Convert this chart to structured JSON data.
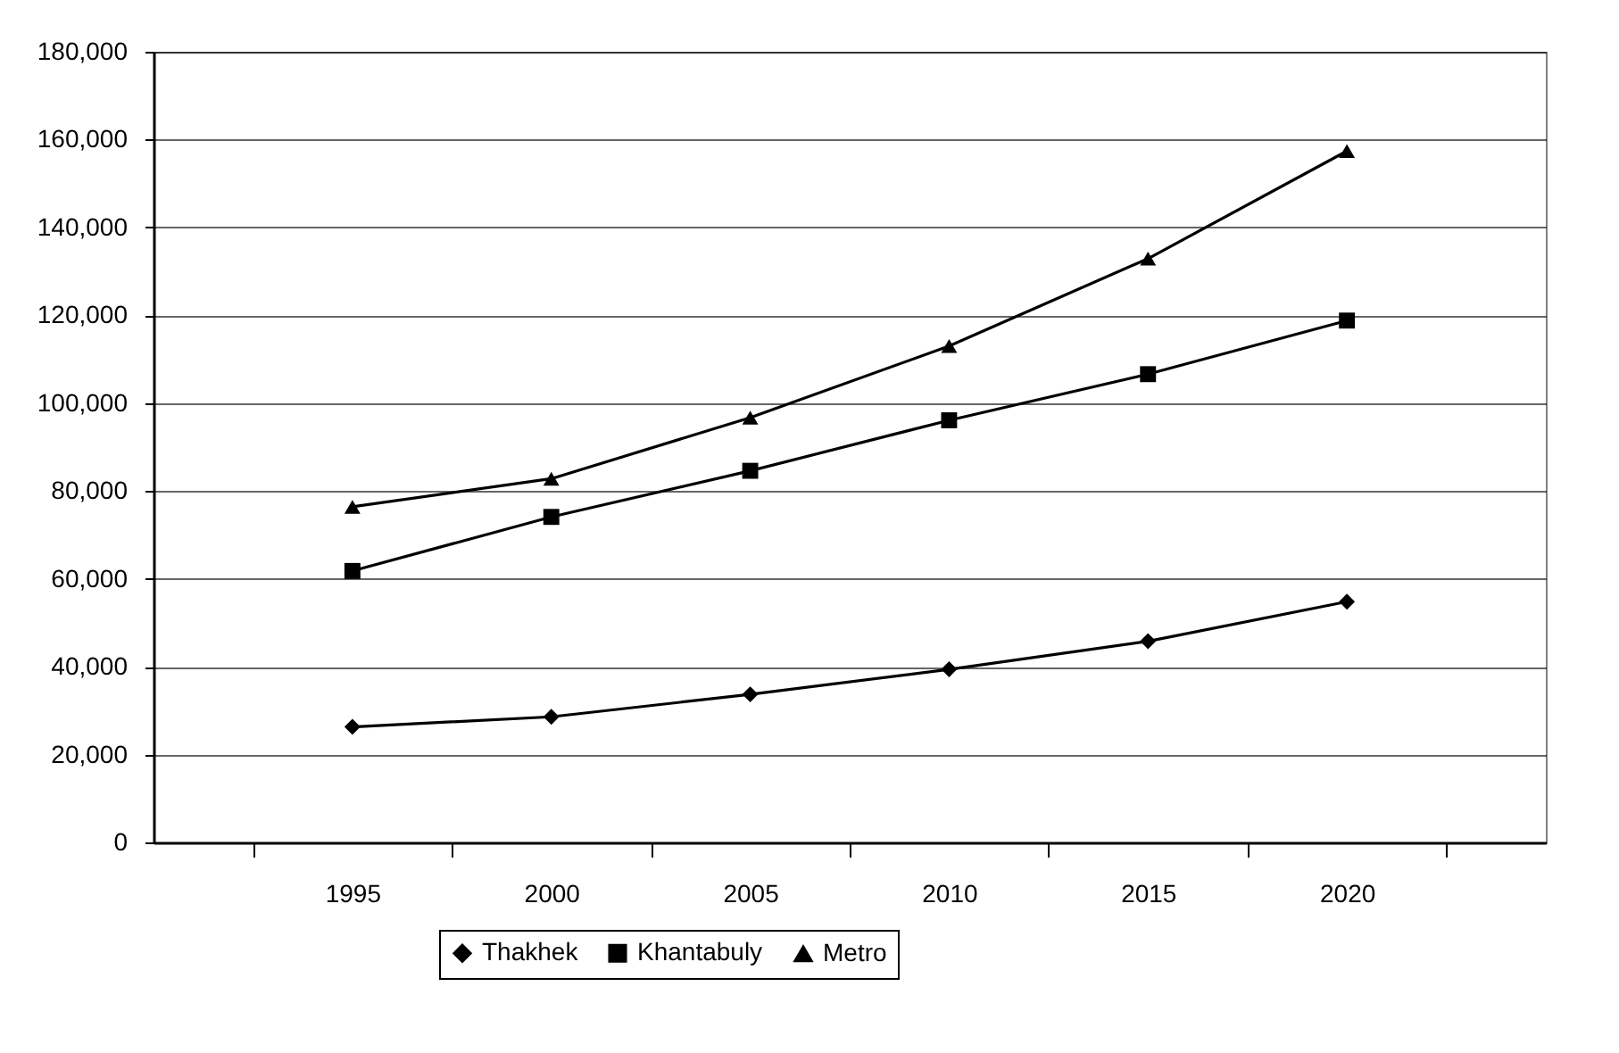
{
  "chart_data": {
    "type": "line",
    "categories": [
      "1995",
      "2000",
      "2005",
      "2010",
      "2015",
      "2020"
    ],
    "series": [
      {
        "name": "Thakhek",
        "color": "#000000",
        "marker": "diamond",
        "values": [
          26300,
          28600,
          33700,
          39400,
          45800,
          54800
        ]
      },
      {
        "name": "Khantabuly",
        "color": "#000000",
        "marker": "square",
        "values": [
          61800,
          74100,
          84600,
          96100,
          106600,
          118800
        ]
      },
      {
        "name": "Metro",
        "color": "#000000",
        "marker": "triangle",
        "values": [
          76400,
          82800,
          96700,
          113000,
          132900,
          157400
        ]
      }
    ],
    "ylim": [
      0,
      180000
    ],
    "yticks": [
      0,
      {
        "value": 20000,
        "label": "20,000"
      },
      {
        "value": 40000,
        "label": "40,000"
      },
      {
        "value": 60000,
        "label": "60,000"
      },
      {
        "value": 80000,
        "label": "80,000"
      },
      {
        "value": 100000,
        "label": "100,000"
      },
      {
        "value": 120000,
        "label": "120,000"
      },
      {
        "value": 140000,
        "label": "140,000"
      },
      {
        "value": 160000,
        "label": "160,000"
      },
      {
        "value": 180000,
        "label": "180,000"
      }
    ],
    "grid": "y",
    "legend": "bottom",
    "line_style": "solid"
  }
}
